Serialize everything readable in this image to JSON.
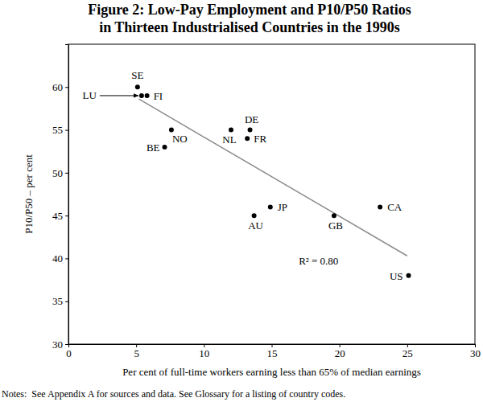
{
  "chart_data": {
    "type": "scatter",
    "title": [
      "Figure 2: Low-Pay Employment and P10/P50 Ratios",
      "in Thirteen Industrialised Countries in the 1990s"
    ],
    "x_label": "Per cent of full-time workers earning less than 65% of median earnings",
    "y_label": "P10/P50 – per cent",
    "notes": "Notes:  See Appendix A for sources and data. See Glossary for a listing of country codes.",
    "annotations": [
      "R² = 0.80"
    ],
    "point_labels": [
      "SE",
      "LU",
      "FI",
      "NO",
      "BE",
      "NL",
      "DE",
      "FR",
      "JP",
      "AU",
      "GB",
      "CA",
      "US"
    ],
    "x": [
      5.1,
      5.4,
      5.8,
      7.6,
      7.1,
      12.0,
      13.4,
      13.2,
      14.9,
      13.7,
      19.6,
      23.0,
      25.1
    ],
    "values": [
      60,
      59,
      59,
      55,
      53,
      55,
      55,
      54,
      46,
      45,
      45,
      46,
      38
    ],
    "color": "#000000",
    "marker": "circle",
    "trend_line": {
      "x": [
        5.2,
        25
      ],
      "values": [
        58.6,
        40.3
      ],
      "color": "#8c8c8c",
      "line_style": "solid"
    },
    "xlim": [
      0,
      30
    ],
    "xticks": [
      0,
      5,
      10,
      15,
      20,
      25,
      30
    ],
    "ylim": [
      30,
      65
    ],
    "yticks": [
      30,
      35,
      40,
      45,
      50,
      55,
      60
    ],
    "grid": false
  }
}
